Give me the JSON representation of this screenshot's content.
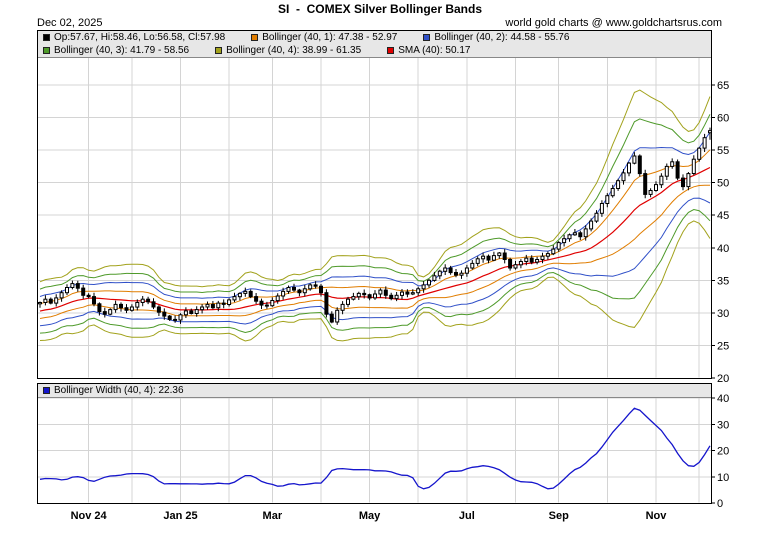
{
  "header": {
    "title": "SI  -  COMEX Silver Bollinger Bands",
    "date": "Dec 02, 2025",
    "credit": "world gold charts @ www.goldchartsrus.com"
  },
  "colors": {
    "candle": "#000000",
    "band1": "#e07d00",
    "band2": "#3050c8",
    "band3": "#4e9a2a",
    "band4": "#a2a21c",
    "sma": "#e00000",
    "width_line": "#1515cc",
    "grid": "#d4d4d4",
    "legend_bg": "#e7e7e7"
  },
  "chart_data": [
    {
      "type": "candlestick",
      "name": "COMEX Silver daily candles with Bollinger Bands (40, 1-4) and SMA (40)",
      "legend": {
        "row1": [
          {
            "color": "#000000",
            "label": "Op:57.67, Hi:58.46, Lo:56.58, Cl:57.98"
          },
          {
            "color": "#e07d00",
            "label": "Bollinger (40, 1): 47.38 - 52.97"
          },
          {
            "color": "#3050c8",
            "label": "Bollinger (40, 2): 44.58 - 55.76"
          }
        ],
        "row2": [
          {
            "color": "#4e9a2a",
            "label": "Bollinger (40, 3): 41.79 - 58.56"
          },
          {
            "color": "#a2a21c",
            "label": "Bollinger (40, 4): 38.99 - 61.35"
          },
          {
            "color": "#e00000",
            "label": "SMA (40): 50.17"
          }
        ]
      },
      "ylim": [
        20,
        65
      ],
      "yticks": [
        20,
        25,
        30,
        35,
        40,
        45,
        50,
        55,
        60,
        65
      ],
      "band_multipliers": [
        1,
        2,
        3,
        4
      ],
      "window_points": 16,
      "sma_today": 50.17,
      "bands_today": {
        "1": [
          47.38,
          52.97
        ],
        "2": [
          44.58,
          55.76
        ],
        "3": [
          41.79,
          58.56
        ],
        "4": [
          38.99,
          61.35
        ]
      },
      "last_candle": {
        "open": 57.67,
        "high": 58.46,
        "low": 56.58,
        "close": 57.98
      },
      "x_axis_months": [
        {
          "label": "Nov 24",
          "index": 9
        },
        {
          "label": "Jan 25",
          "index": 26
        },
        {
          "label": "Mar",
          "index": 43
        },
        {
          "label": "May",
          "index": 61
        },
        {
          "label": "Jul",
          "index": 79
        },
        {
          "label": "Sep",
          "index": 96
        },
        {
          "label": "Nov",
          "index": 114
        }
      ],
      "month_grid_indices": [
        9,
        17,
        26,
        35,
        43,
        52,
        61,
        70,
        79,
        88,
        96,
        105,
        114,
        122
      ],
      "warmup_closes": [
        28.6,
        28.1,
        27.5,
        27.9,
        28.6,
        29.1,
        29.5,
        28.9,
        28.4,
        28.8,
        29.4,
        30.1,
        30.6,
        29.9,
        30.8,
        31.3,
        30.8,
        31.6,
        32.1,
        31.4
      ],
      "closes": [
        31.6,
        32.1,
        31.5,
        32.3,
        33.1,
        33.9,
        34.5,
        33.8,
        32.7,
        32.5,
        31.4,
        30.2,
        29.8,
        30.5,
        31.3,
        30.8,
        30.4,
        30.9,
        31.6,
        32.1,
        31.7,
        30.9,
        30.1,
        29.5,
        29.0,
        28.9,
        29.7,
        30.3,
        29.9,
        30.5,
        30.9,
        31.3,
        30.8,
        31.5,
        31.3,
        32.0,
        32.5,
        33.0,
        33.3,
        32.5,
        31.8,
        31.2,
        31.1,
        31.9,
        32.6,
        33.3,
        33.9,
        33.5,
        33.1,
        33.7,
        34.3,
        34.1,
        33.1,
        29.8,
        28.6,
        30.4,
        31.3,
        32.1,
        32.5,
        33.0,
        32.8,
        32.3,
        32.9,
        33.5,
        32.7,
        32.2,
        32.7,
        33.2,
        32.9,
        33.1,
        33.7,
        34.3,
        35.0,
        35.7,
        36.4,
        36.9,
        36.2,
        35.8,
        36.1,
        36.9,
        37.6,
        38.3,
        38.7,
        38.1,
        38.8,
        39.2,
        38.2,
        36.9,
        37.4,
        37.9,
        38.4,
        37.8,
        38.2,
        38.7,
        39.1,
        39.8,
        40.8,
        41.4,
        42.0,
        42.3,
        41.7,
        42.9,
        44.1,
        45.3,
        46.8,
        48.0,
        49.1,
        50.3,
        51.5,
        53.0,
        54.1,
        51.4,
        48.2,
        48.8,
        49.7,
        51.0,
        52.5,
        53.2,
        50.7,
        49.4,
        51.4,
        53.6,
        55.3,
        56.9,
        57.98
      ]
    },
    {
      "type": "line",
      "name": "Bollinger Width (40, 4)",
      "legend": {
        "color": "#1515cc",
        "label": "Bollinger Width (40, 4): 22.36"
      },
      "current_value": 22.36,
      "ylim": [
        0,
        40
      ],
      "yticks": [
        0,
        10,
        20,
        30,
        40
      ],
      "derived": true,
      "derivation": "8 x rolling standard deviation of closes over the 40-day window (upper4 - lower4 band spread)"
    }
  ]
}
